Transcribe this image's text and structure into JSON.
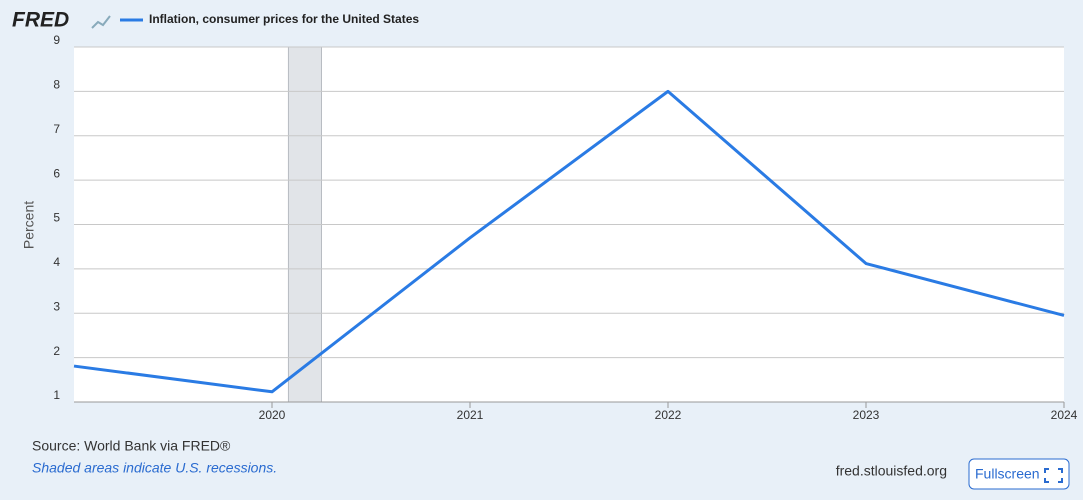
{
  "chart_data": {
    "type": "line",
    "logo": "FRED",
    "y_label": "Percent",
    "x": [
      2019,
      2020,
      2021,
      2022,
      2023,
      2024
    ],
    "series": [
      {
        "name": "Inflation, consumer prices for the United States",
        "color": "#2a7be4",
        "values": [
          1.81,
          1.23,
          4.7,
          8.0,
          4.12,
          2.95
        ]
      }
    ],
    "recessions": [
      [
        2020.083,
        2020.25
      ]
    ],
    "xlim": [
      2019,
      2024
    ],
    "xticks": [
      2020,
      2021,
      2022,
      2023,
      2024
    ],
    "ylim": [
      1,
      9
    ],
    "yticks": [
      1,
      2,
      3,
      4,
      5,
      6,
      7,
      8,
      9
    ],
    "grid": true,
    "source": "Source: World Bank via FRED®",
    "note": "Shaded areas indicate U.S. recessions.",
    "site": "fred.stlouisfed.org",
    "button": "Fullscreen"
  }
}
